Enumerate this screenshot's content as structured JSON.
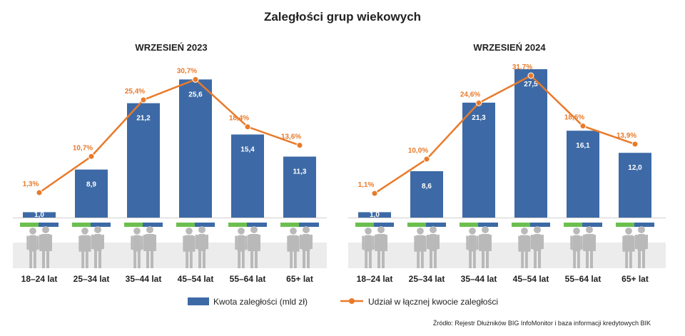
{
  "colors": {
    "bar": "#3d6aa6",
    "line": "#e97a2a",
    "green_stripe": "#6cbf4f",
    "blue_stripe": "#3d6aa6",
    "silhouette": "#b9b9b9",
    "ground": "#ececec"
  },
  "chart_data": {
    "title": "Zaległości grup wiekowych",
    "legend": {
      "bars": "Kwota zaległości (mld zł)",
      "line": "Udział w łącznej kwocie zaległości"
    },
    "source": "Źródło: Rejestr Dłużników BIG InfoMonitor i baza informacji kredytowych BIK",
    "categories": [
      "18–24 lat",
      "25–34 lat",
      "35–44 lat",
      "45–54 lat",
      "55–64 lat",
      "65+ lat"
    ],
    "panels": [
      {
        "title": "WRZESIEŃ 2023",
        "type": "bar+line",
        "bars": {
          "name": "Kwota zaległości (mld zł)",
          "values": [
            1.0,
            8.9,
            21.2,
            25.6,
            15.4,
            11.3
          ],
          "labels": [
            "1,0",
            "8,9",
            "21,2",
            "25,6",
            "15,4",
            "11,3"
          ]
        },
        "line": {
          "name": "Udział w łącznej kwocie zaległości",
          "values": [
            1.3,
            10.7,
            25.4,
            30.7,
            18.4,
            13.6
          ],
          "labels": [
            "1,3%",
            "10,7%",
            "25,4%",
            "30,7%",
            "18,4%",
            "13,6%"
          ]
        },
        "stripe_green_share": [
          0.48,
          0.48,
          0.48,
          0.48,
          0.48,
          0.48
        ]
      },
      {
        "title": "WRZESIEŃ 2024",
        "type": "bar+line",
        "bars": {
          "name": "Kwota zaległości (mld zł)",
          "values": [
            1.0,
            8.6,
            21.3,
            27.5,
            16.1,
            12.0
          ],
          "labels": [
            "1,0",
            "8,6",
            "21,3",
            "27,5",
            "16,1",
            "12,0"
          ]
        },
        "line": {
          "name": "Udział w łącznej kwocie zaległości",
          "values": [
            1.1,
            10.0,
            24.6,
            31.7,
            18.6,
            13.9
          ],
          "labels": [
            "1,1%",
            "10,0%",
            "24,6%",
            "31,7%",
            "18,6%",
            "13,9%"
          ]
        },
        "stripe_green_share": [
          0.48,
          0.48,
          0.48,
          0.48,
          0.48,
          0.48
        ]
      }
    ]
  }
}
